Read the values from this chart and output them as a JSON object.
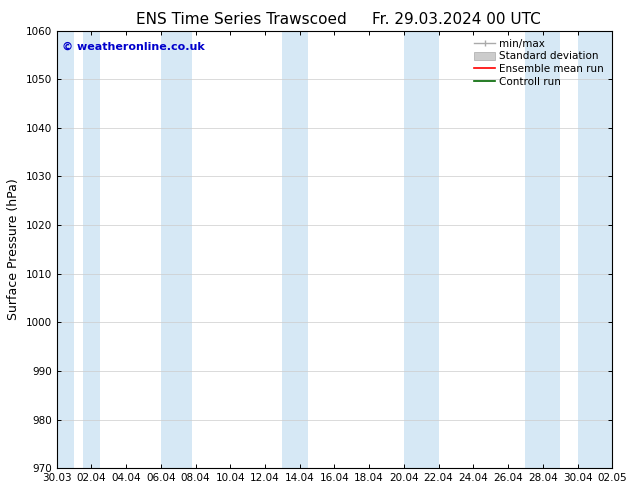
{
  "title_left": "ENS Time Series Trawscoed",
  "title_right": "Fr. 29.03.2024 00 UTC",
  "ylabel": "Surface Pressure (hPa)",
  "ylim": [
    970,
    1060
  ],
  "yticks": [
    970,
    980,
    990,
    1000,
    1010,
    1020,
    1030,
    1040,
    1050,
    1060
  ],
  "x_labels": [
    "30.03",
    "02.04",
    "04.04",
    "06.04",
    "08.04",
    "10.04",
    "12.04",
    "14.04",
    "16.04",
    "18.04",
    "20.04",
    "22.04",
    "24.04",
    "26.04",
    "28.04",
    "30.04",
    "02.05"
  ],
  "x_values": [
    0,
    2,
    4,
    6,
    8,
    10,
    12,
    14,
    16,
    18,
    20,
    22,
    24,
    26,
    28,
    30,
    32
  ],
  "band_color": "#d6e8f5",
  "copyright_text": "© weatheronline.co.uk",
  "copyright_color": "#0000cc",
  "bg_color": "#ffffff",
  "axis_bg_color": "#ffffff",
  "title_fontsize": 11,
  "tick_fontsize": 7.5,
  "label_fontsize": 9,
  "legend_fontsize": 7.5
}
